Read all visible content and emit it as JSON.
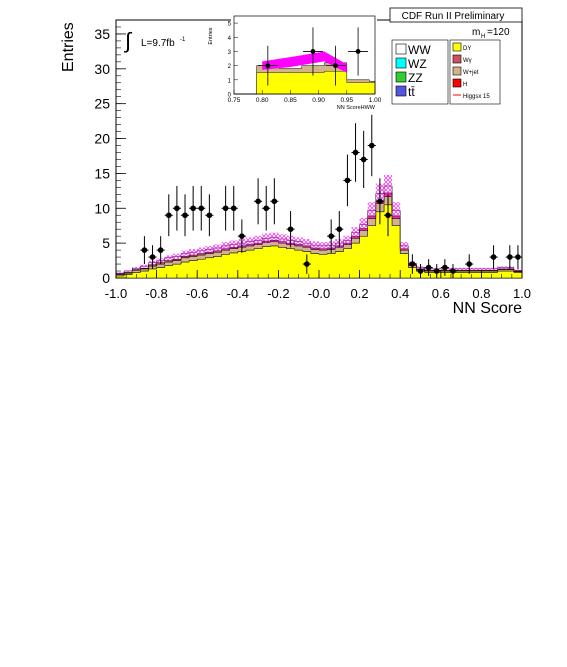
{
  "chart_data": {
    "type": "bar",
    "title": "CDF Run II Preliminary",
    "xlabel": "NN Score",
    "ylabel": "Entries",
    "luminosity_label": "L=9.7fb",
    "luminosity_exponent": "-1",
    "integral_symbol": "∫",
    "mass_label": "m",
    "mass_subscript": "H",
    "mass_value": "=120",
    "xlim": [
      -1.0,
      1.0
    ],
    "ylim": [
      0,
      37
    ],
    "x_ticks": [
      "-1.0",
      "-0.8",
      "-0.6",
      "-0.4",
      "-0.2",
      "-0.0",
      "0.2",
      "0.4",
      "0.6",
      "0.8",
      "1.0"
    ],
    "y_ticks": [
      "0",
      "5",
      "10",
      "15",
      "20",
      "25",
      "30",
      "35"
    ],
    "bin_edges": [
      -1.0,
      -0.96,
      -0.92,
      -0.88,
      -0.84,
      -0.8,
      -0.76,
      -0.72,
      -0.68,
      -0.64,
      -0.6,
      -0.56,
      -0.52,
      -0.48,
      -0.44,
      -0.4,
      -0.36,
      -0.32,
      -0.28,
      -0.24,
      -0.2,
      -0.16,
      -0.12,
      -0.08,
      -0.04,
      0.0,
      0.04,
      0.08,
      0.12,
      0.16,
      0.2,
      0.24,
      0.28,
      0.32,
      0.36,
      0.4,
      0.44,
      0.48,
      0.52,
      0.56,
      0.6,
      0.64,
      0.68,
      0.72,
      0.76,
      0.8,
      0.84,
      0.88,
      0.92,
      0.96,
      1.0
    ],
    "series": [
      {
        "name": "DY",
        "color": "#ffff00",
        "values": [
          0.3,
          0.5,
          0.8,
          1.0,
          1.3,
          1.5,
          1.8,
          2.0,
          2.3,
          2.5,
          2.7,
          2.9,
          3.1,
          3.4,
          3.6,
          3.8,
          4.0,
          4.2,
          4.5,
          4.6,
          4.4,
          4.2,
          4.0,
          3.8,
          3.5,
          3.4,
          3.5,
          3.8,
          4.2,
          5.0,
          6.0,
          7.5,
          9.5,
          10.5,
          7.5,
          3.5,
          1.5,
          1.0,
          0.8,
          0.8,
          0.8,
          0.8,
          0.8,
          0.8,
          0.8,
          0.8,
          0.8,
          1.0,
          1.0,
          0.8
        ]
      },
      {
        "name": "W+jet",
        "color": "#d2b48c",
        "values": [
          0.2,
          0.2,
          0.3,
          0.3,
          0.4,
          0.5,
          0.5,
          0.5,
          0.6,
          0.6,
          0.6,
          0.6,
          0.6,
          0.6,
          0.6,
          0.6,
          0.6,
          0.6,
          0.6,
          0.6,
          0.6,
          0.6,
          0.6,
          0.6,
          0.6,
          0.6,
          0.6,
          0.6,
          0.6,
          0.7,
          0.8,
          1.0,
          1.2,
          1.2,
          1.0,
          0.5,
          0.3,
          0.2,
          0.2,
          0.2,
          0.2,
          0.2,
          0.2,
          0.2,
          0.2,
          0.2,
          0.2,
          0.2,
          0.2,
          0.1
        ]
      },
      {
        "name": "Wγ",
        "color": "#d05060",
        "values": [
          0.1,
          0.1,
          0.1,
          0.1,
          0.2,
          0.2,
          0.2,
          0.2,
          0.2,
          0.2,
          0.2,
          0.2,
          0.2,
          0.2,
          0.2,
          0.2,
          0.2,
          0.2,
          0.2,
          0.2,
          0.2,
          0.2,
          0.2,
          0.2,
          0.2,
          0.2,
          0.2,
          0.2,
          0.2,
          0.3,
          0.3,
          0.4,
          0.4,
          0.5,
          0.4,
          0.2,
          0.1,
          0.1,
          0.1,
          0.1,
          0.1,
          0.1,
          0.1,
          0.1,
          0.1,
          0.1,
          0.1,
          0.1,
          0.1,
          0.1
        ]
      },
      {
        "name": "WW",
        "color": "#ffffff",
        "values": [
          0.1,
          0.2,
          0.2,
          0.3,
          0.3,
          0.3,
          0.4,
          0.4,
          0.4,
          0.4,
          0.4,
          0.4,
          0.4,
          0.4,
          0.4,
          0.4,
          0.4,
          0.4,
          0.4,
          0.4,
          0.4,
          0.4,
          0.4,
          0.4,
          0.4,
          0.4,
          0.4,
          0.4,
          0.4,
          0.5,
          0.6,
          0.8,
          1.0,
          1.0,
          0.8,
          0.4,
          0.2,
          0.2,
          0.2,
          0.2,
          0.2,
          0.2,
          0.2,
          0.2,
          0.2,
          0.2,
          0.2,
          0.2,
          0.2,
          0.1
        ]
      }
    ],
    "uncertainty_band": {
      "color": "#ff00ff",
      "relative": 0.12
    },
    "higgs_signal": {
      "name": "Higgsx 15",
      "color": "#ff0000"
    },
    "data_points": [
      {
        "x": -0.86,
        "y": 4,
        "err": 2.0
      },
      {
        "x": -0.82,
        "y": 3,
        "err": 1.7
      },
      {
        "x": -0.78,
        "y": 4,
        "err": 2.0
      },
      {
        "x": -0.74,
        "y": 9,
        "err": 3.0
      },
      {
        "x": -0.7,
        "y": 10,
        "err": 3.2
      },
      {
        "x": -0.66,
        "y": 9,
        "err": 3.0
      },
      {
        "x": -0.62,
        "y": 10,
        "err": 3.2
      },
      {
        "x": -0.58,
        "y": 10,
        "err": 3.2
      },
      {
        "x": -0.54,
        "y": 9,
        "err": 3.0
      },
      {
        "x": -0.46,
        "y": 10,
        "err": 3.2
      },
      {
        "x": -0.42,
        "y": 10,
        "err": 3.2
      },
      {
        "x": -0.38,
        "y": 6,
        "err": 2.4
      },
      {
        "x": -0.3,
        "y": 11,
        "err": 3.3
      },
      {
        "x": -0.26,
        "y": 10,
        "err": 3.2
      },
      {
        "x": -0.22,
        "y": 11,
        "err": 3.3
      },
      {
        "x": -0.14,
        "y": 7,
        "err": 2.6
      },
      {
        "x": -0.06,
        "y": 2,
        "err": 1.4
      },
      {
        "x": 0.06,
        "y": 6,
        "err": 2.4
      },
      {
        "x": 0.1,
        "y": 7,
        "err": 2.6
      },
      {
        "x": 0.14,
        "y": 14,
        "err": 3.7
      },
      {
        "x": 0.18,
        "y": 18,
        "err": 4.2
      },
      {
        "x": 0.22,
        "y": 17,
        "err": 4.1
      },
      {
        "x": 0.26,
        "y": 19,
        "err": 4.4
      },
      {
        "x": 0.3,
        "y": 11,
        "err": 3.3
      },
      {
        "x": 0.34,
        "y": 9,
        "err": 3.0
      },
      {
        "x": 0.46,
        "y": 2,
        "err": 1.4
      },
      {
        "x": 0.5,
        "y": 1,
        "err": 1.0
      },
      {
        "x": 0.54,
        "y": 1.5,
        "err": 1.2
      },
      {
        "x": 0.58,
        "y": 1,
        "err": 1.0
      },
      {
        "x": 0.62,
        "y": 1.5,
        "err": 1.2
      },
      {
        "x": 0.66,
        "y": 1,
        "err": 1.0
      },
      {
        "x": 0.74,
        "y": 2,
        "err": 1.4
      },
      {
        "x": 0.86,
        "y": 3,
        "err": 1.7
      },
      {
        "x": 0.94,
        "y": 3,
        "err": 1.7
      },
      {
        "x": 0.98,
        "y": 3,
        "err": 1.7
      }
    ],
    "legend": {
      "placement": "top-right",
      "left_column": [
        {
          "label": "WW",
          "color": "#ffffff"
        },
        {
          "label": "WZ",
          "color": "#00ffff"
        },
        {
          "label": "ZZ",
          "color": "#33cc33"
        },
        {
          "label": "tt̄",
          "color": "#5555dd"
        }
      ],
      "right_column": [
        {
          "label": "DY",
          "color": "#ffff00"
        },
        {
          "label": "Wγ",
          "color": "#d05060"
        },
        {
          "label": "W+jet",
          "color": "#d2b48c"
        },
        {
          "label": "H",
          "color": "#ff0000"
        },
        {
          "label": "Higgsx 15",
          "color": "#ff0000",
          "line": true
        }
      ]
    },
    "inset": {
      "xlabel": "NN ScoreHWW",
      "ylabel": "Entries",
      "xlim": [
        0.75,
        1.0
      ],
      "ylim": [
        0,
        5.5
      ],
      "x_ticks": [
        "0.75",
        "0.80",
        "0.85",
        "0.90",
        "0.95",
        "1.00"
      ],
      "y_ticks": [
        "0",
        "1",
        "2",
        "3",
        "4",
        "5"
      ],
      "bin_edges": [
        0.75,
        0.79,
        0.83,
        0.87,
        0.91,
        0.95,
        0.99,
        1.0
      ],
      "stack_total": [
        0.0,
        2.0,
        1.8,
        2.0,
        2.2,
        1.0,
        0.9
      ],
      "yellow_part": [
        0.0,
        1.5,
        1.5,
        1.5,
        1.6,
        0.8,
        0.8
      ],
      "signal_band": [
        [
          0.8,
          1.7,
          2.3
        ],
        [
          0.85,
          1.9,
          2.6
        ],
        [
          0.91,
          2.3,
          3.0
        ],
        [
          0.95,
          1.5,
          2.1
        ]
      ],
      "data_points": [
        {
          "x": 0.81,
          "y": 2,
          "err": 1.4
        },
        {
          "x": 0.89,
          "y": 3,
          "err": 1.7
        },
        {
          "x": 0.93,
          "y": 2,
          "err": 1.4
        },
        {
          "x": 0.97,
          "y": 3,
          "err": 1.7
        }
      ]
    }
  }
}
